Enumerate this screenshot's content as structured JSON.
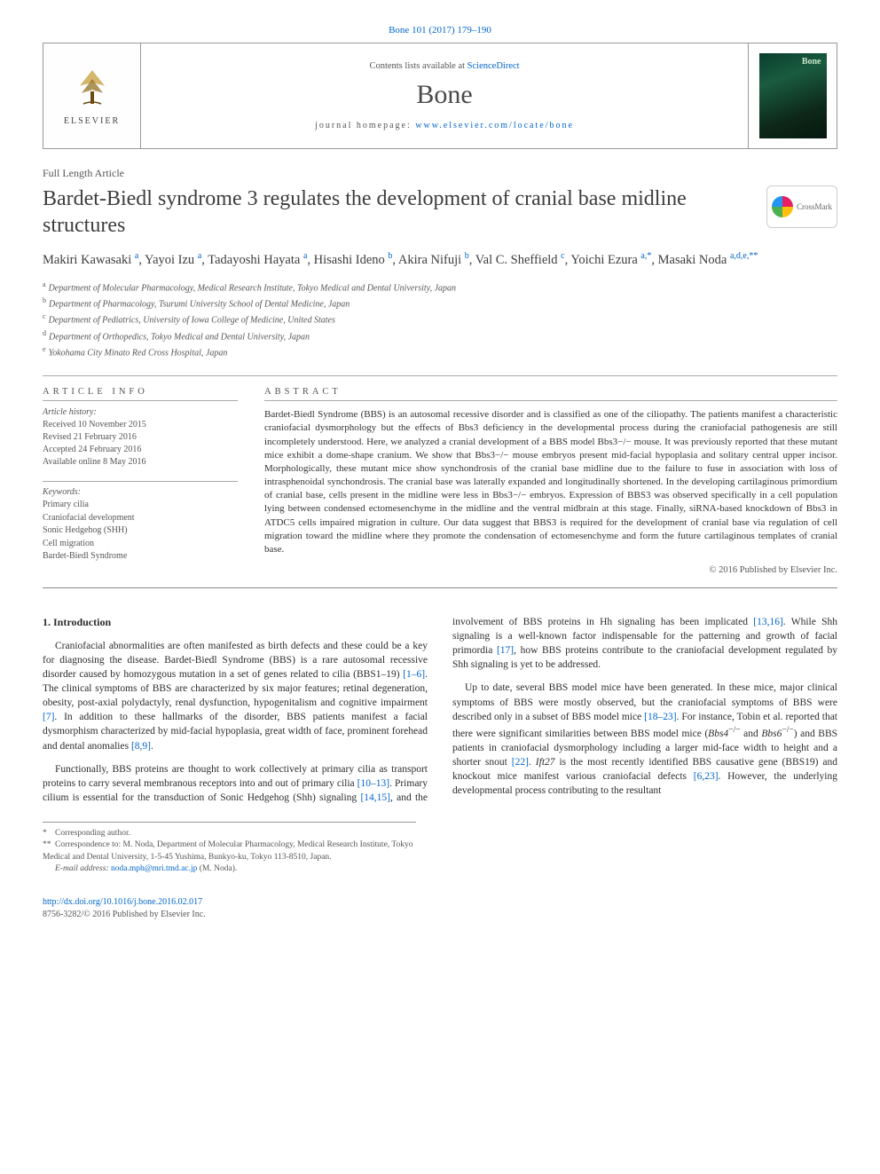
{
  "top_link": "Bone 101 (2017) 179–190",
  "header": {
    "contents_prefix": "Contents lists available at ",
    "contents_link": "ScienceDirect",
    "journal": "Bone",
    "homepage_prefix": "journal homepage: ",
    "homepage_url": "www.elsevier.com/locate/bone",
    "publisher": "ELSEVIER"
  },
  "article_type": "Full Length Article",
  "title": "Bardet-Biedl syndrome 3 regulates the development of cranial base midline structures",
  "crossmark": "CrossMark",
  "authors_html": "Makiri Kawasaki <sup>a</sup>, Yayoi Izu <sup>a</sup>, Tadayoshi Hayata <sup>a</sup>, Hisashi Ideno <sup>b</sup>, Akira Nifuji <sup>b</sup>, Val C. Sheffield <sup>c</sup>, Yoichi Ezura <sup>a,*</sup>, Masaki Noda <sup>a,d,e,**</sup>",
  "affiliations": [
    {
      "sup": "a",
      "text": "Department of Molecular Pharmacology, Medical Research Institute, Tokyo Medical and Dental University, Japan"
    },
    {
      "sup": "b",
      "text": "Department of Pharmacology, Tsurumi University School of Dental Medicine, Japan"
    },
    {
      "sup": "c",
      "text": "Department of Pediatrics, University of Iowa College of Medicine, United States"
    },
    {
      "sup": "d",
      "text": "Department of Orthopedics, Tokyo Medical and Dental University, Japan"
    },
    {
      "sup": "e",
      "text": "Yokohama City Minato Red Cross Hospital, Japan"
    }
  ],
  "info": {
    "heading": "article info",
    "history_label": "Article history:",
    "history": [
      "Received 10 November 2015",
      "Revised 21 February 2016",
      "Accepted 24 February 2016",
      "Available online 8 May 2016"
    ],
    "keywords_label": "Keywords:",
    "keywords": [
      "Primary cilia",
      "Craniofacial development",
      "Sonic Hedgehog (SHH)",
      "Cell migration",
      "Bardet-Biedl Syndrome"
    ]
  },
  "abstract": {
    "heading": "abstract",
    "text": "Bardet-Biedl Syndrome (BBS) is an autosomal recessive disorder and is classified as one of the ciliopathy. The patients manifest a characteristic craniofacial dysmorphology but the effects of Bbs3 deficiency in the developmental process during the craniofacial pathogenesis are still incompletely understood. Here, we analyzed a cranial development of a BBS model Bbs3−/− mouse. It was previously reported that these mutant mice exhibit a dome-shape cranium. We show that Bbs3−/− mouse embryos present mid-facial hypoplasia and solitary central upper incisor. Morphologically, these mutant mice show synchondrosis of the cranial base midline due to the failure to fuse in association with loss of intrasphenoidal synchondrosis. The cranial base was laterally expanded and longitudinally shortened. In the developing cartilaginous primordium of cranial base, cells present in the midline were less in Bbs3−/− embryos. Expression of BBS3 was observed specifically in a cell population lying between condensed ectomesenchyme in the midline and the ventral midbrain at this stage. Finally, siRNA-based knockdown of Bbs3 in ATDC5 cells impaired migration in culture. Our data suggest that BBS3 is required for the development of cranial base via regulation of cell migration toward the midline where they promote the condensation of ectomesenchyme and form the future cartilaginous templates of cranial base.",
    "copyright": "© 2016 Published by Elsevier Inc."
  },
  "body": {
    "intro_heading": "1. Introduction",
    "p1_pre": "Craniofacial abnormalities are often manifested as birth defects and these could be a key for diagnosing the disease. Bardet-Biedl Syndrome (BBS) is a rare autosomal recessive disorder caused by homozygous mutation in a set of genes related to cilia (BBS1–19) ",
    "p1_ref1": "[1–6]",
    "p1_mid": ". The clinical symptoms of BBS are characterized by six major features; retinal degeneration, obesity, post-axial polydactyly, renal dysfunction, hypogenitalism and cognitive impairment ",
    "p1_ref2": "[7]",
    "p1_post": ". In addition to these hallmarks of the disorder, BBS patients manifest a facial dysmorphism characterized by mid-facial hypoplasia, great width of face, prominent forehead and dental anomalies ",
    "p1_ref3": "[8,9]",
    "p1_end": ".",
    "p2_pre": "Functionally, BBS proteins are thought to work collectively at primary cilia as transport proteins to carry several membranous receptors into and out of primary cilia ",
    "p2_ref1": "[10–13]",
    "p2_mid1": ". Primary cilium is essential for the transduction of Sonic Hedgehog (Shh) signaling ",
    "p2_ref2": "[14,15]",
    "p2_mid2": ", and the involvement of BBS proteins in Hh signaling has been implicated ",
    "p2_ref3": "[13,16]",
    "p2_mid3": ". While Shh signaling is a well-known factor indispensable for the patterning and growth of facial primordia ",
    "p2_ref4": "[17]",
    "p2_end": ", how BBS proteins contribute to the craniofacial development regulated by Shh signaling is yet to be addressed.",
    "p3_pre": "Up to date, several BBS model mice have been generated. In these mice, major clinical symptoms of BBS were mostly observed, but the craniofacial symptoms of BBS were described only in a subset of BBS model mice ",
    "p3_ref1": "[18–23]",
    "p3_mid1": ". For instance, Tobin et al. reported that there were significant similarities between BBS model mice (",
    "p3_i1": "Bbs4",
    "p3_sup1": "−/−",
    "p3_mid2": " and ",
    "p3_i2": "Bbs6",
    "p3_sup2": "−/−",
    "p3_mid3": ") and BBS patients in craniofacial dysmorphology including a larger mid-face width to height and a shorter snout ",
    "p3_ref2": "[22]",
    "p3_mid4": ". ",
    "p3_i3": "Ift27",
    "p3_mid5": " is the most recently identified BBS causative gene (BBS19) and knockout mice manifest various craniofacial defects ",
    "p3_ref3": "[6,23]",
    "p3_end": ". However, the underlying developmental process contributing to the resultant"
  },
  "footnotes": {
    "f1_sym": "*",
    "f1_text": "Corresponding author.",
    "f2_sym": "**",
    "f2_text": "Correspondence to: M. Noda, Department of Molecular Pharmacology, Medical Research Institute, Tokyo Medical and Dental University, 1-5-45 Yushima, Bunkyo-ku, Tokyo 113-8510, Japan.",
    "email_label": "E-mail address: ",
    "email": "noda.mph@mri.tmd.ac.jp",
    "email_suffix": " (M. Noda)."
  },
  "footer": {
    "doi": "http://dx.doi.org/10.1016/j.bone.2016.02.017",
    "issn_line": "8756-3282/© 2016 Published by Elsevier Inc."
  },
  "colors": {
    "link": "#0066cc",
    "text": "#333333",
    "muted": "#555555",
    "rule": "#999999"
  }
}
